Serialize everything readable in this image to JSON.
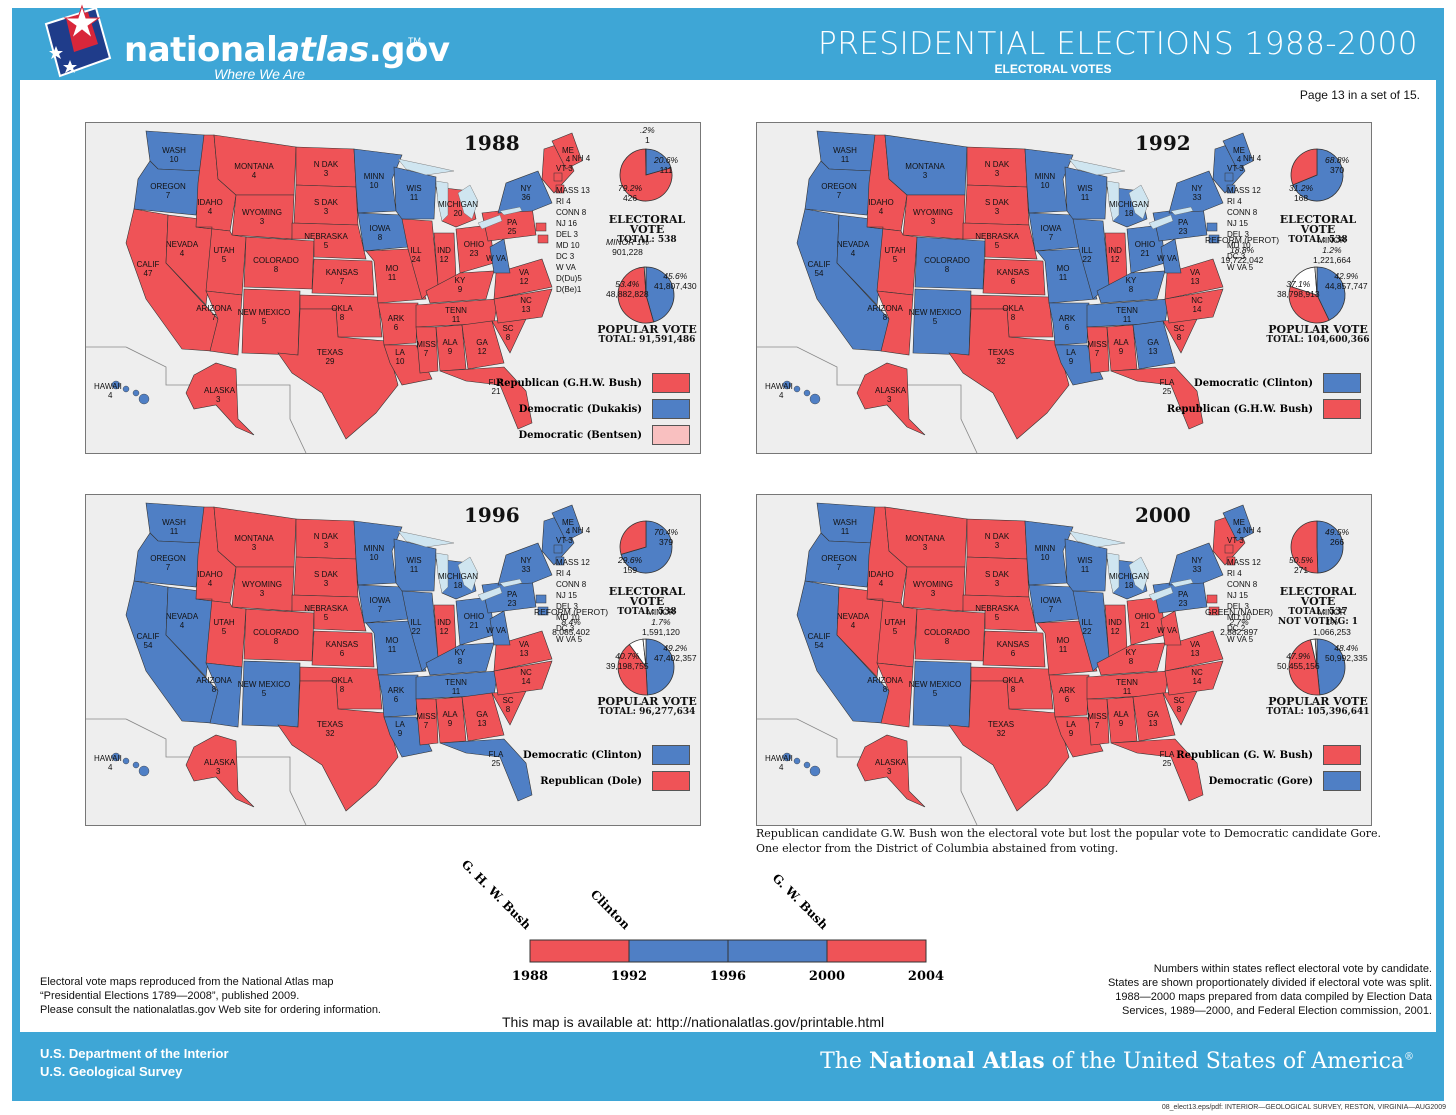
{
  "header": {
    "logo_main": "nationalatlas.gov",
    "logo_bold": "national",
    "logo_ital": "atlas",
    "logo_suffix": ".gov",
    "logo_tm": "TM",
    "tagline": "Where We Are",
    "title": "PRESIDENTIAL ELECTIONS 1988-2000",
    "subtitle": "ELECTORAL VOTES",
    "page_note": "Page 13 in a set of 15."
  },
  "colors": {
    "republican": "#ef5357",
    "democratic": "#4f7fc5",
    "bentsen": "#f9c0c0",
    "header_blue": "#3ea6d6",
    "lake": "#cfe5f0"
  },
  "panels": [
    {
      "year": "1988",
      "states": {
        "WASH": "D",
        "OREGON": "D",
        "CALIF": "R",
        "NEVADA": "R",
        "IDAHO": "R",
        "MONTANA": "R",
        "WYOMING": "R",
        "UTAH": "R",
        "ARIZONA": "R",
        "COLORADO": "R",
        "NEW MEXICO": "R",
        "N DAK": "R",
        "S DAK": "R",
        "NEBRASKA": "R",
        "KANSAS": "R",
        "OKLA": "R",
        "TEXAS": "R",
        "MINN": "D",
        "IOWA": "D",
        "MO": "R",
        "ARK": "R",
        "LA": "R",
        "WIS": "D",
        "ILL": "R",
        "MICHIGAN": "R",
        "IND": "R",
        "OHIO": "R",
        "KY": "R",
        "TENN": "R",
        "MISS": "R",
        "ALA": "R",
        "GA": "R",
        "FLA": "R",
        "SC": "R",
        "NC": "R",
        "VA": "R",
        "W VA": "D",
        "PA": "R",
        "NY": "D",
        "ME": "R",
        "NE": "R",
        "HAWAII": "D",
        "ALASKA": "R"
      },
      "ev_labels": {
        "WASH": "10",
        "OREGON": "7",
        "CALIF": "47",
        "NEVADA": "4",
        "IDAHO": "4",
        "MONTANA": "4",
        "WYOMING": "3",
        "UTAH": "5",
        "ARIZONA": "7",
        "COLORADO": "8",
        "NEW MEXICO": "5",
        "N DAK": "3",
        "S DAK": "3",
        "NEBRASKA": "5",
        "KANSAS": "7",
        "OKLA": "8",
        "TEXAS": "29",
        "MINN": "10",
        "IOWA": "8",
        "MO": "11",
        "ARK": "6",
        "LA": "10",
        "WIS": "11",
        "ILL": "24",
        "MICHIGAN": "20",
        "IND": "12",
        "OHIO": "23",
        "KY": "9",
        "TENN": "11",
        "MISS": "7",
        "ALA": "9",
        "GA": "12",
        "FLA": "21",
        "SC": "8",
        "NC": "13",
        "VA": "12",
        "PA": "25",
        "NY": "36",
        "ME": "4",
        "HAWAII": "4",
        "ALASKA": "3"
      },
      "east_labels": [
        "VT 3",
        "NH 4",
        "MASS 13",
        "RI 4",
        "CONN 8",
        "NJ 16",
        "DEL 3",
        "MD 10",
        "DC 3",
        "W VA",
        "D(Du)5",
        "D(Be)1"
      ],
      "electoral": {
        "slices": [
          {
            "party": "D",
            "pct": 20.6,
            "label_pct": "20.6%",
            "label_val": "111"
          },
          {
            "party": "R",
            "pct": 79.2,
            "label_pct": "79.2%",
            "label_val": "426"
          },
          {
            "party": "B",
            "pct": 0.2,
            "label_pct": ".2%",
            "label_val": "1"
          }
        ],
        "title": "ELECTORAL VOTE",
        "total": "TOTAL:  538",
        "extra": ""
      },
      "popular": {
        "slices": [
          {
            "party": "D",
            "pct": 45.6,
            "label_pct": "45.6%",
            "label_val": "41,807,430"
          },
          {
            "party": "R",
            "pct": 53.4,
            "label_pct": "53.4%",
            "label_val": "48,882,828"
          },
          {
            "party": "M",
            "pct": 1.0,
            "label_pct": "MINOR  1%",
            "label_val": "901,228"
          }
        ],
        "title": "POPULAR VOTE",
        "total": "TOTAL:  91,591,486"
      },
      "legend": [
        {
          "label": "Republican (G.H.W. Bush)",
          "party": "R"
        },
        {
          "label": "Democratic (Dukakis)",
          "party": "D"
        },
        {
          "label": "Democratic (Bentsen)",
          "party": "B"
        }
      ]
    },
    {
      "year": "1992",
      "states": {
        "WASH": "D",
        "OREGON": "D",
        "CALIF": "D",
        "NEVADA": "D",
        "IDAHO": "R",
        "MONTANA": "D",
        "WYOMING": "R",
        "UTAH": "R",
        "ARIZONA": "R",
        "COLORADO": "D",
        "NEW MEXICO": "D",
        "N DAK": "R",
        "S DAK": "R",
        "NEBRASKA": "R",
        "KANSAS": "R",
        "OKLA": "R",
        "TEXAS": "R",
        "MINN": "D",
        "IOWA": "D",
        "MO": "D",
        "ARK": "D",
        "LA": "D",
        "WIS": "D",
        "ILL": "D",
        "MICHIGAN": "D",
        "IND": "R",
        "OHIO": "D",
        "KY": "D",
        "TENN": "D",
        "MISS": "R",
        "ALA": "R",
        "GA": "D",
        "FLA": "R",
        "SC": "R",
        "NC": "R",
        "VA": "R",
        "W VA": "D",
        "PA": "D",
        "NY": "D",
        "ME": "D",
        "NE": "D",
        "HAWAII": "D",
        "ALASKA": "R"
      },
      "ev_labels": {
        "WASH": "11",
        "OREGON": "7",
        "CALIF": "54",
        "NEVADA": "4",
        "IDAHO": "4",
        "MONTANA": "3",
        "WYOMING": "3",
        "UTAH": "5",
        "ARIZONA": "8",
        "COLORADO": "8",
        "NEW MEXICO": "5",
        "N DAK": "3",
        "S DAK": "3",
        "NEBRASKA": "5",
        "KANSAS": "6",
        "OKLA": "8",
        "TEXAS": "32",
        "MINN": "10",
        "IOWA": "7",
        "MO": "11",
        "ARK": "6",
        "LA": "9",
        "WIS": "11",
        "ILL": "22",
        "MICHIGAN": "18",
        "IND": "12",
        "OHIO": "21",
        "KY": "8",
        "TENN": "11",
        "MISS": "7",
        "ALA": "9",
        "GA": "13",
        "FLA": "25",
        "SC": "8",
        "NC": "14",
        "VA": "13",
        "PA": "23",
        "NY": "33",
        "ME": "4",
        "HAWAII": "4",
        "ALASKA": "3"
      },
      "east_labels": [
        "VT 3",
        "NH 4",
        "MASS 12",
        "RI 4",
        "CONN 8",
        "NJ 15",
        "DEL 3",
        "MD 10",
        "DC 3",
        "W VA 5"
      ],
      "electoral": {
        "slices": [
          {
            "party": "D",
            "pct": 68.8,
            "label_pct": "68.8%",
            "label_val": "370"
          },
          {
            "party": "R",
            "pct": 31.2,
            "label_pct": "31.2%",
            "label_val": "168"
          }
        ],
        "title": "ELECTORAL VOTE",
        "total": "TOTAL:  538",
        "extra": ""
      },
      "popular": {
        "slices": [
          {
            "party": "D",
            "pct": 42.9,
            "label_pct": "42.9%",
            "label_val": "44,857,747"
          },
          {
            "party": "R",
            "pct": 37.1,
            "label_pct": "37.1%",
            "label_val": "38,798,913"
          },
          {
            "party": "P",
            "pct": 18.8,
            "label_pct": "18.8%",
            "label_val": "19,722,042",
            "name": "REFORM (PEROT)"
          },
          {
            "party": "M",
            "pct": 1.2,
            "label_pct": "1.2%",
            "label_val": "1,221,664",
            "name": "MINOR"
          }
        ],
        "title": "POPULAR VOTE",
        "total": "TOTAL:  104,600,366"
      },
      "legend": [
        {
          "label": "Democratic (Clinton)",
          "party": "D"
        },
        {
          "label": "Republican (G.H.W. Bush)",
          "party": "R"
        }
      ]
    },
    {
      "year": "1996",
      "states": {
        "WASH": "D",
        "OREGON": "D",
        "CALIF": "D",
        "NEVADA": "D",
        "IDAHO": "R",
        "MONTANA": "R",
        "WYOMING": "R",
        "UTAH": "R",
        "ARIZONA": "D",
        "COLORADO": "R",
        "NEW MEXICO": "D",
        "N DAK": "R",
        "S DAK": "R",
        "NEBRASKA": "R",
        "KANSAS": "R",
        "OKLA": "R",
        "TEXAS": "R",
        "MINN": "D",
        "IOWA": "D",
        "MO": "D",
        "ARK": "D",
        "LA": "D",
        "WIS": "D",
        "ILL": "D",
        "MICHIGAN": "D",
        "IND": "R",
        "OHIO": "D",
        "KY": "D",
        "TENN": "D",
        "MISS": "R",
        "ALA": "R",
        "GA": "R",
        "FLA": "D",
        "SC": "R",
        "NC": "R",
        "VA": "R",
        "W VA": "D",
        "PA": "D",
        "NY": "D",
        "ME": "D",
        "NE": "D",
        "HAWAII": "D",
        "ALASKA": "R"
      },
      "ev_labels": {
        "WASH": "11",
        "OREGON": "7",
        "CALIF": "54",
        "NEVADA": "4",
        "IDAHO": "4",
        "MONTANA": "3",
        "WYOMING": "3",
        "UTAH": "5",
        "ARIZONA": "8",
        "COLORADO": "8",
        "NEW MEXICO": "5",
        "N DAK": "3",
        "S DAK": "3",
        "NEBRASKA": "5",
        "KANSAS": "6",
        "OKLA": "8",
        "TEXAS": "32",
        "MINN": "10",
        "IOWA": "7",
        "MO": "11",
        "ARK": "6",
        "LA": "9",
        "WIS": "11",
        "ILL": "22",
        "MICHIGAN": "18",
        "IND": "12",
        "OHIO": "21",
        "KY": "8",
        "TENN": "11",
        "MISS": "7",
        "ALA": "9",
        "GA": "13",
        "FLA": "25",
        "SC": "8",
        "NC": "14",
        "VA": "13",
        "PA": "23",
        "NY": "33",
        "ME": "4",
        "HAWAII": "4",
        "ALASKA": "3"
      },
      "east_labels": [
        "VT 3",
        "NH 4",
        "MASS 12",
        "RI 4",
        "CONN 8",
        "NJ 15",
        "DEL 3",
        "MD 10",
        "DC 3",
        "W VA 5"
      ],
      "electoral": {
        "slices": [
          {
            "party": "D",
            "pct": 70.4,
            "label_pct": "70.4%",
            "label_val": "379"
          },
          {
            "party": "R",
            "pct": 29.6,
            "label_pct": "29.6%",
            "label_val": "159"
          }
        ],
        "title": "ELECTORAL VOTE",
        "total": "TOTAL:  538",
        "extra": ""
      },
      "popular": {
        "slices": [
          {
            "party": "D",
            "pct": 49.2,
            "label_pct": "49.2%",
            "label_val": "47,402,357"
          },
          {
            "party": "R",
            "pct": 40.7,
            "label_pct": "40.7%",
            "label_val": "39,198,755"
          },
          {
            "party": "P",
            "pct": 8.4,
            "label_pct": "8.4%",
            "label_val": "8,085,402",
            "name": "REFORM (PEROT)"
          },
          {
            "party": "M",
            "pct": 1.7,
            "label_pct": "1.7%",
            "label_val": "1,591,120",
            "name": "MINOR"
          }
        ],
        "title": "POPULAR VOTE",
        "total": "TOTAL:  96,277,634"
      },
      "legend": [
        {
          "label": "Democratic (Clinton)",
          "party": "D"
        },
        {
          "label": "Republican (Dole)",
          "party": "R"
        }
      ]
    },
    {
      "year": "2000",
      "states": {
        "WASH": "D",
        "OREGON": "D",
        "CALIF": "D",
        "NEVADA": "R",
        "IDAHO": "R",
        "MONTANA": "R",
        "WYOMING": "R",
        "UTAH": "R",
        "ARIZONA": "R",
        "COLORADO": "R",
        "NEW MEXICO": "D",
        "N DAK": "R",
        "S DAK": "R",
        "NEBRASKA": "R",
        "KANSAS": "R",
        "OKLA": "R",
        "TEXAS": "R",
        "MINN": "D",
        "IOWA": "D",
        "MO": "R",
        "ARK": "R",
        "LA": "R",
        "WIS": "D",
        "ILL": "D",
        "MICHIGAN": "D",
        "IND": "R",
        "OHIO": "R",
        "KY": "R",
        "TENN": "R",
        "MISS": "R",
        "ALA": "R",
        "GA": "R",
        "FLA": "R",
        "SC": "R",
        "NC": "R",
        "VA": "R",
        "W VA": "R",
        "PA": "D",
        "NY": "D",
        "ME": "D",
        "NE": "R",
        "HAWAII": "D",
        "ALASKA": "R"
      },
      "ev_labels": {
        "WASH": "11",
        "OREGON": "7",
        "CALIF": "54",
        "NEVADA": "4",
        "IDAHO": "4",
        "MONTANA": "3",
        "WYOMING": "3",
        "UTAH": "5",
        "ARIZONA": "8",
        "COLORADO": "8",
        "NEW MEXICO": "5",
        "N DAK": "3",
        "S DAK": "3",
        "NEBRASKA": "5",
        "KANSAS": "6",
        "OKLA": "8",
        "TEXAS": "32",
        "MINN": "10",
        "IOWA": "7",
        "MO": "11",
        "ARK": "6",
        "LA": "9",
        "WIS": "11",
        "ILL": "22",
        "MICHIGAN": "18",
        "IND": "12",
        "OHIO": "21",
        "KY": "8",
        "TENN": "11",
        "MISS": "7",
        "ALA": "9",
        "GA": "13",
        "FLA": "25",
        "SC": "8",
        "NC": "14",
        "VA": "13",
        "PA": "23",
        "NY": "33",
        "ME": "4",
        "HAWAII": "4",
        "ALASKA": "3"
      },
      "east_labels": [
        "VT 3",
        "NH 4",
        "MASS 12",
        "RI 4",
        "CONN 8",
        "NJ 15",
        "DEL 3",
        "MD 10",
        "DC 2",
        "W VA 5"
      ],
      "electoral": {
        "slices": [
          {
            "party": "D",
            "pct": 49.5,
            "label_pct": "49.5%",
            "label_val": "266"
          },
          {
            "party": "R",
            "pct": 50.5,
            "label_pct": "50.5%",
            "label_val": "271"
          }
        ],
        "title": "ELECTORAL VOTE",
        "total": "TOTAL:  537",
        "extra": "NOT VOTING:  1"
      },
      "popular": {
        "slices": [
          {
            "party": "D",
            "pct": 48.4,
            "label_pct": "48.4%",
            "label_val": "50,992,335"
          },
          {
            "party": "R",
            "pct": 47.9,
            "label_pct": "47.9%",
            "label_val": "50,455,156"
          },
          {
            "party": "G",
            "pct": 2.7,
            "label_pct": "2.7%",
            "label_val": "2,882,897",
            "name": "GREEN (NADER)"
          },
          {
            "party": "M",
            "pct": 1.0,
            "label_pct": "1%",
            "label_val": "1,066,253",
            "name": "MINOR"
          }
        ],
        "title": "POPULAR VOTE",
        "total": "TOTAL:  105,396,641"
      },
      "legend": [
        {
          "label": "Republican (G. W. Bush)",
          "party": "R"
        },
        {
          "label": "Democratic (Gore)",
          "party": "D"
        }
      ]
    }
  ],
  "note_2000": [
    "Republican candidate G.W. Bush won the electoral vote but lost the popular vote to Democratic candidate Gore.",
    "One elector from the District of Columbia abstained from voting."
  ],
  "timeline": {
    "years": [
      "1988",
      "1992",
      "1996",
      "2000",
      "2004"
    ],
    "segments": [
      "R",
      "D",
      "D",
      "R"
    ],
    "names": [
      {
        "label": "G. H. W. Bush",
        "at": 0
      },
      {
        "label": "Clinton",
        "at": 1
      },
      {
        "label": "G. W. Bush",
        "at": 3
      }
    ]
  },
  "left_note": [
    "Electoral vote maps reproduced from the National Atlas map",
    "“Presidential Elections 1789—2008”, published 2009.",
    "Please consult the nationalatlas.gov Web site for ordering information."
  ],
  "right_note": [
    "Numbers within states reflect electoral vote by candidate.",
    "States are shown proportionately divided if electoral vote was split.",
    "1988—2000 maps prepared from data compiled by Election Data",
    "Services, 1989—2000, and Federal Election commission, 2001."
  ],
  "available": "This map is available at:  http://nationalatlas.gov/printable.html",
  "footer": {
    "dept_line1": "U.S. Department of the Interior",
    "dept_line2": "U.S. Geological Survey",
    "national_pre": "The ",
    "national_bold": "National Atlas",
    "national_post": " of the United States of America",
    "reg": "®",
    "credit": "08_elect13.eps/pdf: INTERIOR—GEOLOGICAL SURVEY, RESTON, VIRGINIA—AUG2009"
  }
}
